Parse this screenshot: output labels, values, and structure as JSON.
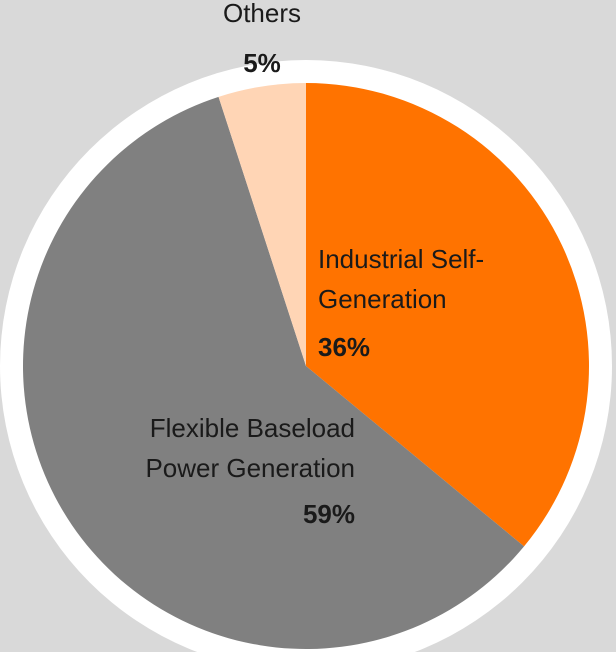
{
  "chart_data": {
    "type": "pie",
    "categories": [
      "Industrial Self-\nGeneration",
      "Flexible Baseload\nPower Generation",
      "Others"
    ],
    "values": [
      36,
      59,
      5
    ],
    "value_labels": [
      "36%",
      "59%",
      "5%"
    ],
    "colors": [
      "#ff7300",
      "#808080",
      "#ffd5b5"
    ]
  }
}
